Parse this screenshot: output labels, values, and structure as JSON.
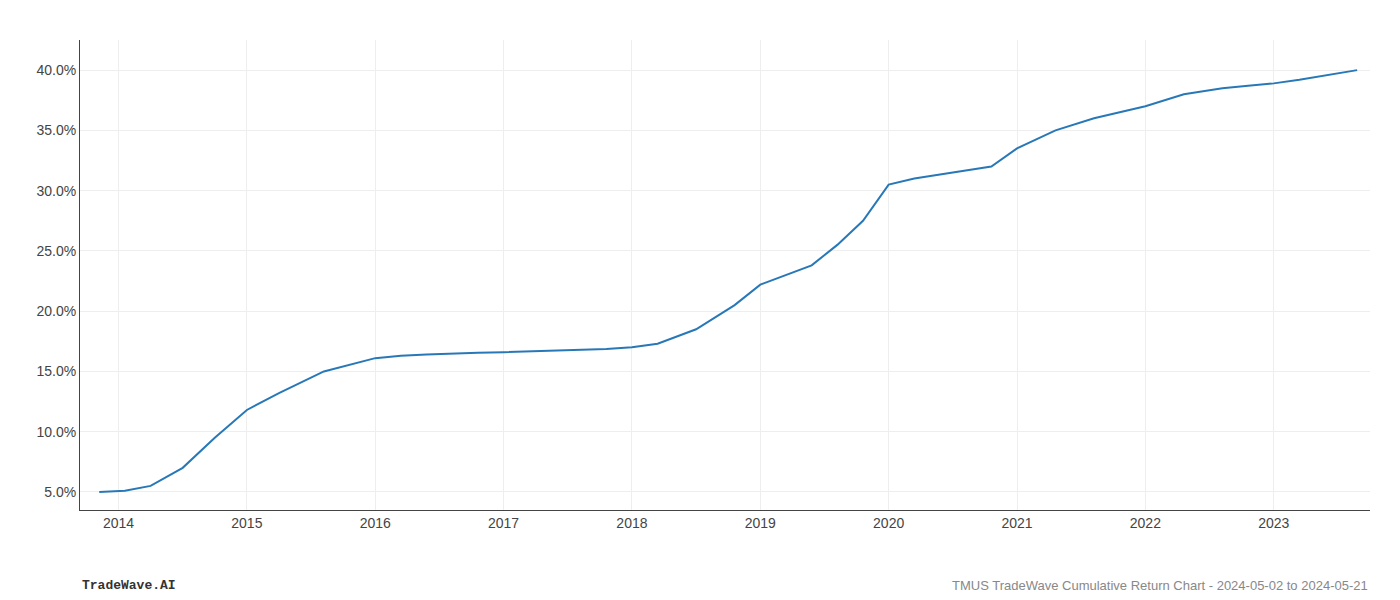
{
  "chart_data": {
    "type": "line",
    "x": [
      2013.85,
      2014.05,
      2014.25,
      2014.5,
      2014.75,
      2015.0,
      2015.25,
      2015.6,
      2016.0,
      2016.2,
      2016.4,
      2016.6,
      2016.8,
      2017.0,
      2017.2,
      2017.5,
      2017.8,
      2018.0,
      2018.2,
      2018.5,
      2018.8,
      2019.0,
      2019.2,
      2019.4,
      2019.6,
      2019.8,
      2020.0,
      2020.2,
      2020.5,
      2020.8,
      2021.0,
      2021.3,
      2021.6,
      2022.0,
      2022.3,
      2022.6,
      2022.8,
      2023.0,
      2023.2,
      2023.5,
      2023.65
    ],
    "values": [
      5.0,
      5.1,
      5.5,
      7.0,
      9.5,
      11.8,
      13.2,
      15.0,
      16.1,
      16.3,
      16.4,
      16.5,
      16.55,
      16.6,
      16.65,
      16.75,
      16.85,
      17.0,
      17.3,
      18.5,
      20.5,
      22.2,
      23.0,
      23.8,
      25.5,
      27.5,
      30.5,
      31.0,
      31.5,
      32.0,
      33.5,
      35.0,
      36.0,
      37.0,
      38.0,
      38.5,
      38.7,
      38.9,
      39.2,
      39.7,
      40.0
    ],
    "color": "#2878b8",
    "xlim": [
      2013.7,
      2023.75
    ],
    "ylim": [
      3.5,
      42.5
    ],
    "xticks": [
      2014,
      2015,
      2016,
      2017,
      2018,
      2019,
      2020,
      2021,
      2022,
      2023
    ],
    "yticks": [
      {
        "value": 5.0,
        "label": "5.0%"
      },
      {
        "value": 10.0,
        "label": "10.0%"
      },
      {
        "value": 15.0,
        "label": "15.0%"
      },
      {
        "value": 20.0,
        "label": "20.0%"
      },
      {
        "value": 25.0,
        "label": "25.0%"
      },
      {
        "value": 30.0,
        "label": "30.0%"
      },
      {
        "value": 35.0,
        "label": "35.0%"
      },
      {
        "value": 40.0,
        "label": "40.0%"
      }
    ],
    "grid": true,
    "annotations": [
      "TradeWave.AI",
      "TMUS TradeWave Cumulative Return Chart - 2024-05-02 to 2024-05-21"
    ]
  }
}
